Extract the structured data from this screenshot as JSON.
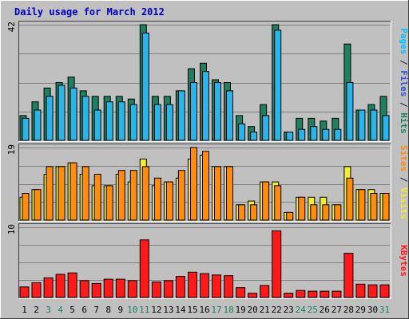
{
  "chart_data": [
    {
      "type": "bar",
      "title": "Daily usage for March 2012",
      "categories": [
        "1",
        "2",
        "3",
        "4",
        "5",
        "6",
        "7",
        "8",
        "9",
        "10",
        "11",
        "12",
        "13",
        "14",
        "15",
        "16",
        "17",
        "18",
        "19",
        "20",
        "21",
        "22",
        "23",
        "24",
        "25",
        "26",
        "27",
        "28",
        "29",
        "30",
        "31"
      ],
      "weekend_days": [
        "3",
        "4",
        "10",
        "11",
        "17",
        "18",
        "24",
        "25",
        "31"
      ],
      "ymax_label": "42",
      "ymax": 42,
      "grid": true,
      "series": [
        {
          "name": "Pages",
          "color": "#1e8060",
          "values": [
            9,
            14,
            19,
            21,
            23,
            18,
            16,
            16,
            16,
            15,
            42,
            16,
            16,
            18,
            26,
            28,
            22,
            21,
            9,
            5,
            13,
            42,
            3,
            8,
            8,
            7,
            8,
            35,
            11,
            13,
            16
          ]
        },
        {
          "name": "Files",
          "color": "#2cb4e8",
          "values": [
            8,
            11,
            16,
            20,
            19,
            16,
            11,
            14,
            14,
            13,
            39,
            13,
            13,
            18,
            21,
            25,
            21,
            18,
            6,
            3,
            9,
            40,
            3,
            4,
            5,
            4,
            4,
            21,
            11,
            11,
            9
          ]
        }
      ],
      "right_label_parts": [
        {
          "text": "Pages",
          "color": "#00c0ff"
        },
        {
          "text": " / ",
          "color": "#1a1a40"
        },
        {
          "text": "Files",
          "color": "#3050d0"
        },
        {
          "text": " / ",
          "color": "#1a1a40"
        },
        {
          "text": "Hits",
          "color": "#1e8060"
        }
      ]
    },
    {
      "type": "bar",
      "categories": [
        "1",
        "2",
        "3",
        "4",
        "5",
        "6",
        "7",
        "8",
        "9",
        "10",
        "11",
        "12",
        "13",
        "14",
        "15",
        "16",
        "17",
        "18",
        "19",
        "20",
        "21",
        "22",
        "23",
        "24",
        "25",
        "26",
        "27",
        "28",
        "29",
        "30",
        "31"
      ],
      "ymax_label": "19",
      "ymax": 19,
      "grid": true,
      "series": [
        {
          "name": "Visits",
          "color": "#f0ec38",
          "values": [
            6,
            8,
            12,
            14,
            15,
            12,
            9,
            9,
            12,
            10,
            16,
            9,
            10,
            11,
            16,
            17,
            14,
            14,
            4,
            5,
            10,
            10,
            2,
            6,
            6,
            6,
            4,
            14,
            8,
            8,
            7
          ]
        },
        {
          "name": "Sites",
          "color": "#ff8c10",
          "values": [
            7,
            8,
            14,
            14,
            15,
            14,
            12,
            9,
            13,
            13,
            14,
            11,
            10,
            13,
            19,
            18,
            14,
            14,
            4,
            4,
            10,
            9,
            2,
            6,
            4,
            4,
            4,
            11,
            8,
            7,
            7
          ]
        }
      ],
      "right_label_parts": [
        {
          "text": "Sites",
          "color": "#ff8c10"
        },
        {
          "text": " / ",
          "color": "#1a1a40"
        },
        {
          "text": "Visits",
          "color": "#f0ec38"
        }
      ]
    },
    {
      "type": "bar",
      "categories": [
        "1",
        "2",
        "3",
        "4",
        "5",
        "6",
        "7",
        "8",
        "9",
        "10",
        "11",
        "12",
        "13",
        "14",
        "15",
        "16",
        "17",
        "18",
        "19",
        "20",
        "21",
        "22",
        "23",
        "24",
        "25",
        "26",
        "27",
        "28",
        "29",
        "30",
        "31"
      ],
      "ymax_label": "10",
      "ymax": 10,
      "grid": true,
      "series": [
        {
          "name": "KBytes",
          "color": "#ff1a1a",
          "values": [
            1.5,
            2.1,
            2.8,
            3.3,
            3.5,
            2.4,
            2.0,
            2.6,
            2.6,
            2.4,
            8.2,
            2.2,
            2.4,
            3.0,
            3.6,
            3.4,
            3.2,
            3.1,
            1.4,
            0.6,
            1.7,
            9.5,
            0.6,
            1.0,
            0.9,
            0.9,
            0.9,
            6.3,
            1.9,
            1.8,
            1.8
          ]
        }
      ],
      "right_label_parts": [
        {
          "text": "KBytes",
          "color": "#ff1a1a"
        }
      ]
    }
  ],
  "colors": {
    "background": "#c0c0c0",
    "title": "#0000c0",
    "weekday_label": "#000000",
    "weekend_label": "#1e8060"
  }
}
